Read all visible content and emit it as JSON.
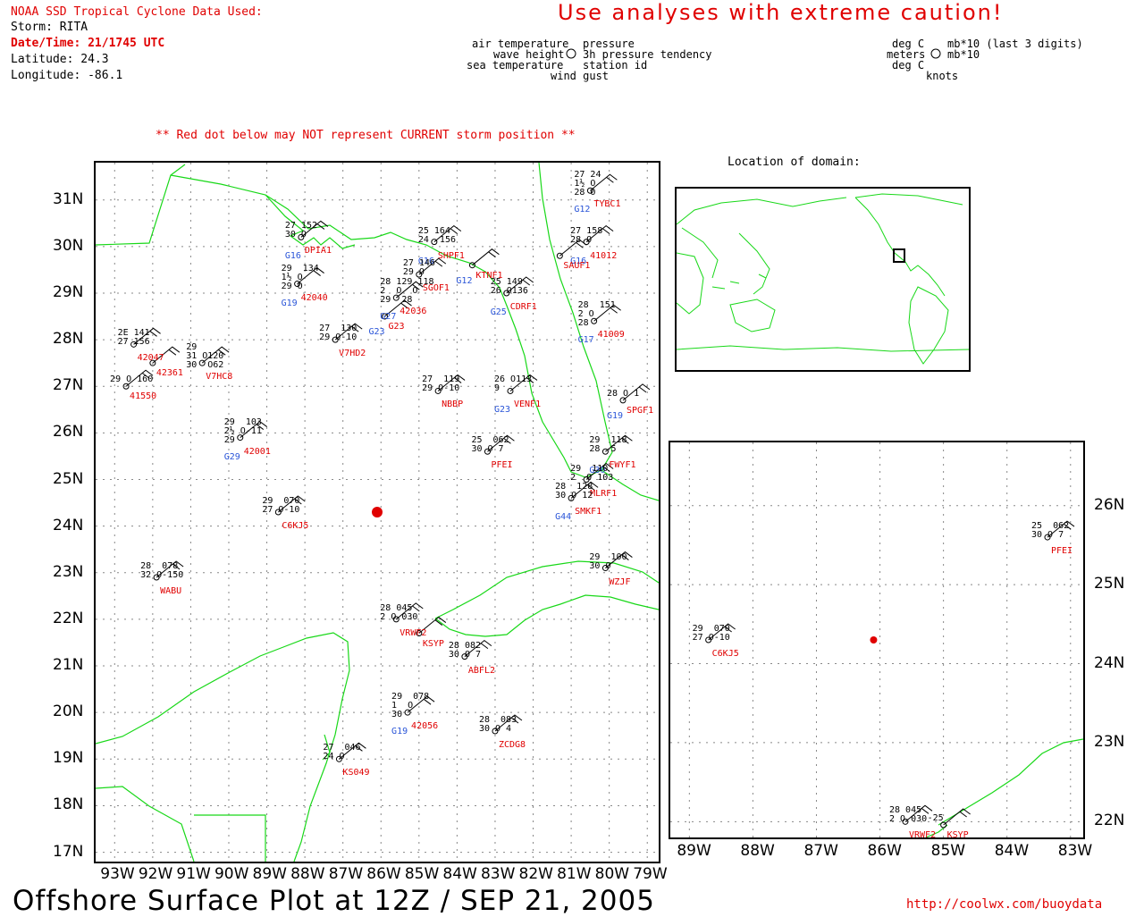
{
  "header": {
    "source_line": "NOAA SSD Tropical Cyclone Data Used:",
    "storm": "Storm: RITA",
    "datetime": "Date/Time: 21/1745 UTC",
    "latitude": "Latitude: 24.3",
    "longitude": "Longitude: -86.1",
    "warning": "Use analyses with extreme caution!",
    "red_dot_note": "** Red dot below may NOT represent CURRENT storm position **"
  },
  "legend": {
    "left": [
      "air temperature",
      "wave height",
      "sea temperature"
    ],
    "right": [
      "pressure",
      "3h pressure tendency",
      "station id",
      "wind gust"
    ],
    "units_left": [
      "deg C",
      "meters",
      "deg C"
    ],
    "units_right": [
      "mb*10 (last 3 digits)",
      "mb*10",
      "",
      "knots"
    ]
  },
  "inset_title": "Location of domain:",
  "main_map": {
    "lat_labels": [
      "31N",
      "30N",
      "29N",
      "28N",
      "27N",
      "26N",
      "25N",
      "24N",
      "23N",
      "22N",
      "21N",
      "20N",
      "19N",
      "18N",
      "17N"
    ],
    "lon_labels": [
      "93W",
      "92W",
      "91W",
      "90W",
      "89W",
      "88W",
      "87W",
      "86W",
      "85W",
      "84W",
      "83W",
      "82W",
      "81W",
      "80W",
      "79W"
    ],
    "stations": [
      {
        "id": "DPIA1",
        "blue": "G16",
        "lines": [
          "27 152",
          "30 O"
        ],
        "lon": -88.1,
        "lat": 30.2
      },
      {
        "id": "42040",
        "blue": "G19",
        "lines": [
          "29  134",
          "1½ O",
          "29 O"
        ],
        "lon": -88.2,
        "lat": 29.2
      },
      {
        "id": "V7HD2",
        "blue": "",
        "lines": [
          "27  130",
          "29 O-10"
        ],
        "lon": -87.2,
        "lat": 28.0
      },
      {
        "id": "42047",
        "blue": "",
        "lines": [
          "2E 141",
          "27 156"
        ],
        "lon": -92.5,
        "lat": 27.9
      },
      {
        "id": "42361",
        "blue": "",
        "lines": [
          ""
        ],
        "lon": -92.0,
        "lat": 27.5
      },
      {
        "id": "V7HC8",
        "blue": "",
        "lines": [
          "29",
          "31 O120",
          "30  O62"
        ],
        "lon": -90.7,
        "lat": 27.5
      },
      {
        "id": "41550",
        "blue": "",
        "lines": [
          "29 O 160"
        ],
        "lon": -92.7,
        "lat": 27.0
      },
      {
        "id": "42001",
        "blue": "G29",
        "lines": [
          "29  103",
          "2½ O-11",
          "29"
        ],
        "lon": -89.7,
        "lat": 25.9
      },
      {
        "id": "C6KJ5",
        "blue": "",
        "lines": [
          "29  070",
          "27 O-10"
        ],
        "lon": -88.7,
        "lat": 24.3
      },
      {
        "id": "WABU",
        "blue": "",
        "lines": [
          "28  078",
          "32 O-150"
        ],
        "lon": -91.9,
        "lat": 22.9
      },
      {
        "id": "SHPF1",
        "blue": "G16",
        "lines": [
          "25 164",
          "24  156"
        ],
        "lon": -84.6,
        "lat": 30.1
      },
      {
        "id": "KTNF1",
        "blue": "G12",
        "lines": [
          ""
        ],
        "lon": -83.6,
        "lat": 29.6
      },
      {
        "id": "SGOF1",
        "blue": "",
        "lines": [
          "27 146",
          "29 O"
        ],
        "lon": -85.0,
        "lat": 29.4
      },
      {
        "id": "42036",
        "blue": "G27",
        "lines": [
          "28 129 118",
          "2  O  O",
          "29  28"
        ],
        "lon": -85.6,
        "lat": 28.9
      },
      {
        "id": "G23",
        "blue": "G23",
        "lines": [
          ""
        ],
        "lon": -85.9,
        "lat": 28.5
      },
      {
        "id": "NBBP",
        "blue": "",
        "lines": [
          "27  119",
          "29 O-10"
        ],
        "lon": -84.5,
        "lat": 26.9
      },
      {
        "id": "VENF1",
        "blue": "G23",
        "lines": [
          "26 O113",
          "9"
        ],
        "lon": -82.6,
        "lat": 26.9
      },
      {
        "id": "PFEI",
        "blue": "",
        "lines": [
          "25  062",
          "30 O 7"
        ],
        "lon": -83.2,
        "lat": 25.6
      },
      {
        "id": "CDRF1",
        "blue": "G25",
        "lines": [
          "25 149",
          "26 O136"
        ],
        "lon": -82.7,
        "lat": 29.0
      },
      {
        "id": "41012",
        "blue": "G16",
        "lines": [
          "27 158",
          "28 O"
        ],
        "lon": -80.6,
        "lat": 30.1
      },
      {
        "id": "SAUF1",
        "blue": "",
        "lines": [
          ""
        ],
        "lon": -81.3,
        "lat": 29.8
      },
      {
        "id": "41009",
        "blue": "G17",
        "lines": [
          "28  151",
          "2 O",
          "28"
        ],
        "lon": -80.4,
        "lat": 28.4
      },
      {
        "id": "SPGF1",
        "blue": "G19",
        "lines": [
          "28 O 1"
        ],
        "lon": -78.8,
        "lat": 26.7
      },
      {
        "id": "FWYF1",
        "blue": "G30",
        "lines": [
          "29  118",
          "28  5"
        ],
        "lon": -80.1,
        "lat": 25.6
      },
      {
        "id": "MLRF1",
        "blue": "",
        "lines": [
          "29  110",
          "2  O 103"
        ],
        "lon": -80.6,
        "lat": 25.0
      },
      {
        "id": "SMKF1",
        "blue": "G44",
        "lines": [
          "28  128",
          "30 O 12"
        ],
        "lon": -81.0,
        "lat": 24.6
      },
      {
        "id": "WZJF",
        "blue": "",
        "lines": [
          "29  100",
          "30 O"
        ],
        "lon": -80.1,
        "lat": 23.1
      },
      {
        "id": "VRWF2",
        "blue": "",
        "lines": [
          "28 045",
          "2 O 030"
        ],
        "lon": -85.6,
        "lat": 22.0
      },
      {
        "id": "KSYP",
        "blue": "",
        "lines": [
          ""
        ],
        "lon": -85.0,
        "lat": 21.7
      },
      {
        "id": "ABFL2",
        "blue": "",
        "lines": [
          "28 082",
          "30 O 7"
        ],
        "lon": -83.8,
        "lat": 21.2
      },
      {
        "id": "42056",
        "blue": "G19",
        "lines": [
          "29  078",
          "1  O",
          "30"
        ],
        "lon": -85.3,
        "lat": 20.0
      },
      {
        "id": "ZCDG8",
        "blue": "",
        "lines": [
          "28  083",
          "30 O 4"
        ],
        "lon": -83.0,
        "lat": 19.6
      },
      {
        "id": "KS049",
        "blue": "",
        "lines": [
          "27  046",
          "24 O"
        ],
        "lon": -87.1,
        "lat": 19.0
      },
      {
        "id": "TYBC1",
        "blue": "G12",
        "lines": [
          "27 24",
          "1½ O",
          "28 O"
        ],
        "lon": -80.5,
        "lat": 31.2
      }
    ]
  },
  "zoom_map": {
    "lat_labels": [
      "26N",
      "25N",
      "24N",
      "23N",
      "22N"
    ],
    "lon_labels": [
      "89W",
      "88W",
      "87W",
      "86W",
      "85W",
      "84W",
      "83W"
    ],
    "stations": [
      {
        "id": "C6KJ5",
        "lines": [
          "29  070",
          "27 O-10"
        ],
        "lon": -88.7,
        "lat": 24.3
      },
      {
        "id": "PFEI",
        "lines": [
          "25  062",
          "30 O 7"
        ],
        "lon": -83.2,
        "lat": 25.6
      },
      {
        "id": "VRWF2",
        "lines": [
          "28 045",
          "2 O 030"
        ],
        "lon": -85.6,
        "lat": 22.0
      },
      {
        "id": "KSYP",
        "lines": [
          "-25"
        ],
        "lon": -85.0,
        "lat": 21.8
      }
    ]
  },
  "storm_position": {
    "lon": -86.1,
    "lat": 24.3
  },
  "colors": {
    "coast": "#18d818",
    "storm": "#e00000",
    "station_id": "#e00000",
    "buoy_id": "#2a55d8",
    "grid": "#888888"
  },
  "footer": {
    "title": "Offshore Surface Plot at 12Z / SEP 21, 2005",
    "url": "http://coolwx.com/buoydata"
  }
}
